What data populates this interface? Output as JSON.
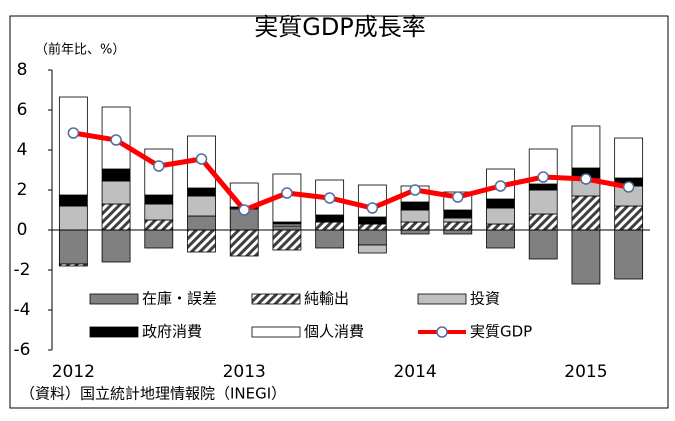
{
  "chart_data": {
    "type": "stacked-bar-line",
    "title": "実質GDP成長率",
    "y_label": "（前年比、%）",
    "source": "（資料）国立統計地理情報院（INEGI）",
    "categories": [
      "2012",
      null,
      null,
      null,
      "2013",
      null,
      null,
      null,
      "2014",
      null,
      null,
      null,
      "2015",
      null
    ],
    "ylim": [
      -6,
      8
    ],
    "yticks": [
      -6,
      -4,
      -2,
      0,
      2,
      4,
      6,
      8
    ],
    "series": [
      {
        "name": "在庫・誤差",
        "color": "#808080",
        "values": [
          -1.7,
          -1.6,
          -0.9,
          0.7,
          1.05,
          0.2,
          -0.9,
          -0.75,
          -0.2,
          -0.2,
          -0.9,
          -1.45,
          -2.7,
          -2.45
        ]
      },
      {
        "name": "純輸出",
        "color": "#404040",
        "pattern": "hatch",
        "values": [
          -0.1,
          1.3,
          0.5,
          -1.1,
          -1.3,
          -1.0,
          0.4,
          0.3,
          0.4,
          0.4,
          0.3,
          0.8,
          1.7,
          1.2
        ]
      },
      {
        "name": "投資",
        "color": "#bfbfbf",
        "values": [
          1.2,
          1.15,
          0.8,
          1.0,
          0.05,
          0.1,
          0.0,
          -0.4,
          0.6,
          0.2,
          0.8,
          1.2,
          0.9,
          1.0
        ]
      },
      {
        "name": "政府消費",
        "color": "#000000",
        "values": [
          0.55,
          0.6,
          0.45,
          0.4,
          0.05,
          0.1,
          0.35,
          0.35,
          0.4,
          0.4,
          0.45,
          0.3,
          0.5,
          0.4
        ]
      },
      {
        "name": "個人消費",
        "color": "#ffffff",
        "values": [
          4.9,
          3.1,
          2.3,
          2.6,
          1.2,
          2.4,
          1.75,
          1.6,
          0.8,
          0.9,
          1.5,
          1.75,
          2.1,
          2.0
        ]
      },
      {
        "name": "実質GDP",
        "color": "#ff0000",
        "type": "line",
        "values": [
          4.85,
          4.5,
          3.2,
          3.55,
          1.0,
          1.85,
          1.6,
          1.1,
          2.0,
          1.65,
          2.2,
          2.65,
          2.55,
          2.15
        ]
      }
    ]
  }
}
